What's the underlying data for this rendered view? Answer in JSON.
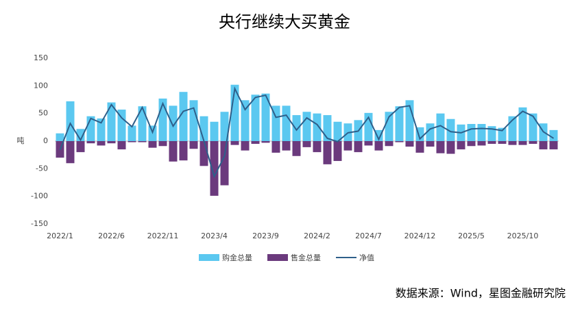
{
  "chart_data": {
    "type": "bar-line",
    "title": "央行继续大买黄金",
    "y_label": "吨",
    "source": "数据来源：Wind，星图金融研究院",
    "categories": [
      "2022/1",
      null,
      null,
      null,
      null,
      "2022/6",
      null,
      null,
      null,
      null,
      "2022/11",
      null,
      null,
      null,
      null,
      "2023/4",
      null,
      null,
      null,
      null,
      "2023/9",
      null,
      null,
      null,
      null,
      "2024/2",
      null,
      null,
      null,
      null,
      "2024/7",
      null,
      null,
      null,
      null,
      "2024/12",
      null,
      null,
      null,
      null,
      "2025/5",
      null,
      null,
      null,
      null,
      "2025/10",
      null,
      null,
      null
    ],
    "series": [
      {
        "name": "购金总量",
        "color": "#5bc8f0",
        "kind": "bar",
        "values": [
          14,
          72,
          22,
          45,
          41,
          70,
          57,
          28,
          63,
          28,
          77,
          64,
          89,
          74,
          45,
          35,
          53,
          102,
          74,
          84,
          86,
          64,
          64,
          47,
          53,
          50,
          47,
          35,
          32,
          38,
          51,
          20,
          53,
          63,
          74,
          25,
          32,
          50,
          40,
          30,
          31,
          31,
          27,
          24,
          45,
          61,
          50,
          32,
          20
        ]
      },
      {
        "name": "售金总量",
        "color": "#6b3a7d",
        "kind": "bar",
        "values": [
          -30,
          -40,
          -20,
          -4,
          -8,
          -4,
          -15,
          -2,
          -2,
          -12,
          -9,
          -37,
          -35,
          -14,
          -45,
          -99,
          -80,
          -7,
          -17,
          -5,
          -3,
          -21,
          -17,
          -27,
          -11,
          -20,
          -42,
          -36,
          -17,
          -20,
          -8,
          -17,
          -9,
          -2,
          -10,
          -21,
          -10,
          -22,
          -23,
          -15,
          -9,
          -8,
          -5,
          -5,
          -7,
          -7,
          -5,
          -15,
          -15
        ]
      },
      {
        "name": "净值",
        "color": "#2e5f8a",
        "kind": "line",
        "values": [
          -16,
          32,
          2,
          41,
          33,
          66,
          42,
          26,
          61,
          16,
          68,
          27,
          54,
          60,
          0,
          -64,
          -27,
          95,
          57,
          79,
          83,
          43,
          47,
          20,
          42,
          30,
          5,
          -1,
          15,
          18,
          43,
          3,
          44,
          61,
          64,
          4,
          22,
          28,
          17,
          15,
          22,
          23,
          22,
          19,
          38,
          54,
          45,
          17,
          5
        ]
      }
    ],
    "ylim": [
      -150,
      150
    ],
    "yticks": [
      -150,
      -100,
      -50,
      0,
      50,
      100,
      150
    ]
  }
}
